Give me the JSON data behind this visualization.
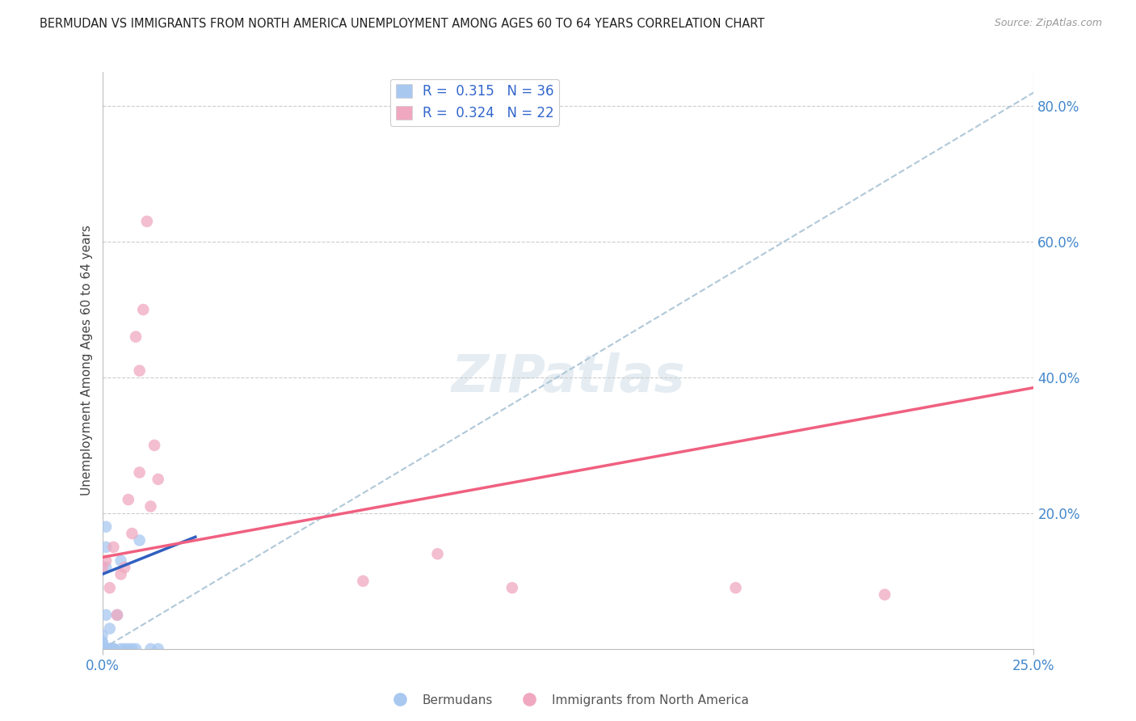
{
  "title": "BERMUDAN VS IMMIGRANTS FROM NORTH AMERICA UNEMPLOYMENT AMONG AGES 60 TO 64 YEARS CORRELATION CHART",
  "source": "Source: ZipAtlas.com",
  "ylabel": "Unemployment Among Ages 60 to 64 years",
  "watermark": "ZIPatlas",
  "bermudans_color": "#a8c8f0",
  "immigrants_color": "#f0a8c0",
  "trendline_bermudans_color": "#3060c0",
  "trendline_immigrants_color": "#f06080",
  "dashed_line_color": "#b0c8d8",
  "xlim": [
    0.0,
    0.25
  ],
  "ylim": [
    0.0,
    0.85
  ],
  "bermudans_x": [
    0.0,
    0.0,
    0.0,
    0.0,
    0.0,
    0.0,
    0.0,
    0.0,
    0.0,
    0.0,
    0.0,
    0.0,
    0.001,
    0.001,
    0.001,
    0.001,
    0.001,
    0.001,
    0.002,
    0.002,
    0.002,
    0.003,
    0.003,
    0.003,
    0.004,
    0.005,
    0.005,
    0.006,
    0.007,
    0.008,
    0.009,
    0.01,
    0.013,
    0.015,
    0.001,
    0.002
  ],
  "bermudans_y": [
    0.0,
    0.0,
    0.0,
    0.0,
    0.0,
    0.0,
    0.0,
    0.0,
    0.02,
    0.01,
    0.01,
    0.0,
    0.18,
    0.15,
    0.05,
    0.0,
    0.0,
    0.0,
    0.03,
    0.0,
    0.0,
    0.0,
    0.0,
    0.0,
    0.05,
    0.13,
    0.0,
    0.0,
    0.0,
    0.0,
    0.0,
    0.16,
    0.0,
    0.0,
    0.12,
    0.0
  ],
  "immigrants_x": [
    0.0,
    0.001,
    0.002,
    0.003,
    0.004,
    0.005,
    0.006,
    0.007,
    0.008,
    0.009,
    0.01,
    0.011,
    0.012,
    0.013,
    0.014,
    0.015,
    0.07,
    0.09,
    0.11,
    0.17,
    0.21,
    0.01
  ],
  "immigrants_y": [
    0.12,
    0.13,
    0.09,
    0.15,
    0.05,
    0.11,
    0.12,
    0.22,
    0.17,
    0.46,
    0.26,
    0.5,
    0.63,
    0.21,
    0.3,
    0.25,
    0.1,
    0.14,
    0.09,
    0.09,
    0.08,
    0.41
  ],
  "trendline_bermudans_x0": 0.0,
  "trendline_bermudans_x1": 0.025,
  "trendline_bermudans_y0": 0.11,
  "trendline_bermudans_y1": 0.165,
  "trendline_immigrants_x0": 0.0,
  "trendline_immigrants_x1": 0.25,
  "trendline_immigrants_y0": 0.135,
  "trendline_immigrants_y1": 0.385
}
